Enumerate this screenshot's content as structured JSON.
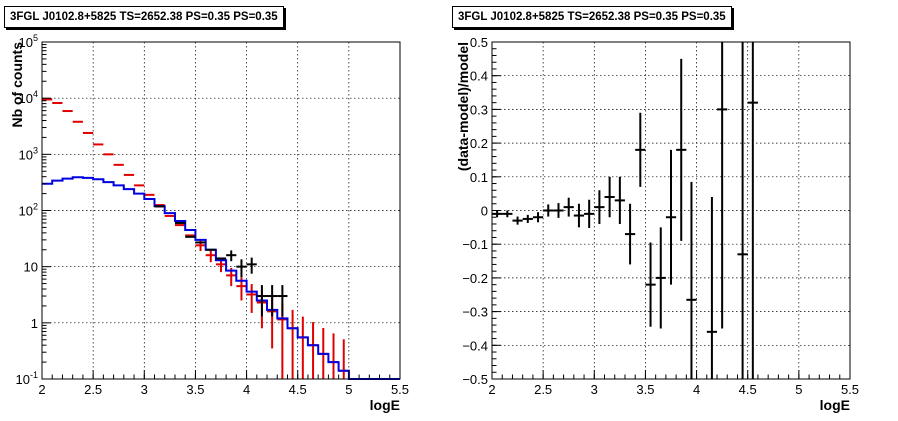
{
  "chart_data": [
    {
      "type": "scatter",
      "title": "3FGL J0102.8+5825 TS=2652.38 PS=0.35 PS=0.35",
      "xlabel": "logE",
      "ylabel": "Nb of counts",
      "xlim": [
        2,
        5.5
      ],
      "ylim": [
        0.1,
        100000
      ],
      "yscale": "log",
      "grid": true,
      "x_ticks": [
        "2",
        "2.5",
        "3",
        "3.5",
        "4",
        "4.5",
        "5",
        "5.5"
      ],
      "y_ticks": [
        "10^-1",
        "1",
        "10",
        "10^2",
        "10^3",
        "10^4",
        "10^5"
      ],
      "bin_width": 0.1,
      "series": [
        {
          "color": "#e00000",
          "style": "errorbar",
          "points": [
            {
              "x": 2.05,
              "y": 9500,
              "err_lo": 0,
              "err_hi": 0
            },
            {
              "x": 2.15,
              "y": 8200,
              "err_lo": 0,
              "err_hi": 0
            },
            {
              "x": 2.25,
              "y": 5900,
              "err_lo": 0,
              "err_hi": 0
            },
            {
              "x": 2.35,
              "y": 3800,
              "err_lo": 0,
              "err_hi": 0
            },
            {
              "x": 2.45,
              "y": 2400,
              "err_lo": 0,
              "err_hi": 0
            },
            {
              "x": 2.55,
              "y": 1500,
              "err_lo": 0,
              "err_hi": 0
            },
            {
              "x": 2.65,
              "y": 1000,
              "err_lo": 0,
              "err_hi": 0
            },
            {
              "x": 2.75,
              "y": 650,
              "err_lo": 0,
              "err_hi": 0
            },
            {
              "x": 2.85,
              "y": 430,
              "err_lo": 0,
              "err_hi": 0
            },
            {
              "x": 2.95,
              "y": 280,
              "err_lo": 0,
              "err_hi": 0
            },
            {
              "x": 3.05,
              "y": 190,
              "err_lo": 0,
              "err_hi": 0
            },
            {
              "x": 3.15,
              "y": 125,
              "err_lo": 0,
              "err_hi": 0
            },
            {
              "x": 3.25,
              "y": 80,
              "err_lo": 0,
              "err_hi": 0
            },
            {
              "x": 3.35,
              "y": 55,
              "err_lo": 0,
              "err_hi": 0
            },
            {
              "x": 3.45,
              "y": 36,
              "err_lo": 0,
              "err_hi": 0
            },
            {
              "x": 3.55,
              "y": 24,
              "err_lo": 5,
              "err_hi": 5
            },
            {
              "x": 3.65,
              "y": 16,
              "err_lo": 4,
              "err_hi": 4
            },
            {
              "x": 3.75,
              "y": 11,
              "err_lo": 3,
              "err_hi": 3
            },
            {
              "x": 3.85,
              "y": 7,
              "err_lo": 2.5,
              "err_hi": 2.5
            },
            {
              "x": 3.95,
              "y": 4.5,
              "err_lo": 2,
              "err_hi": 2
            },
            {
              "x": 4.05,
              "y": 3.2,
              "err_lo": 1.7,
              "err_hi": 1.7
            },
            {
              "x": 4.15,
              "y": 2.3,
              "err_lo": 1.5,
              "err_hi": 1.5
            },
            {
              "x": 4.25,
              "y": 1.6,
              "err_lo": 1.25,
              "err_hi": 1.25
            },
            {
              "x": 4.35,
              "y": 1.15,
              "err_lo": 1.05,
              "err_hi": 1.05
            },
            {
              "x": 4.45,
              "y": 0.8,
              "err_lo": 0.9,
              "err_hi": 0.9
            },
            {
              "x": 4.55,
              "y": 0.55,
              "err_lo": 0.74,
              "err_hi": 0.74
            },
            {
              "x": 4.65,
              "y": 0.4,
              "err_lo": 0.63,
              "err_hi": 0.63
            },
            {
              "x": 4.75,
              "y": 0.28,
              "err_lo": 0.53,
              "err_hi": 0.53
            },
            {
              "x": 4.85,
              "y": 0.2,
              "err_lo": 0.45,
              "err_hi": 0.45
            },
            {
              "x": 4.95,
              "y": 0.14,
              "err_lo": 0.37,
              "err_hi": 0.37
            }
          ]
        },
        {
          "color": "#0000e0",
          "style": "step",
          "points": [
            {
              "x": 2.05,
              "y": 300
            },
            {
              "x": 2.15,
              "y": 340
            },
            {
              "x": 2.25,
              "y": 370
            },
            {
              "x": 2.35,
              "y": 390
            },
            {
              "x": 2.45,
              "y": 380
            },
            {
              "x": 2.55,
              "y": 360
            },
            {
              "x": 2.65,
              "y": 320
            },
            {
              "x": 2.75,
              "y": 280
            },
            {
              "x": 2.85,
              "y": 240
            },
            {
              "x": 2.95,
              "y": 200
            },
            {
              "x": 3.05,
              "y": 160
            },
            {
              "x": 3.15,
              "y": 120
            },
            {
              "x": 3.25,
              "y": 90
            },
            {
              "x": 3.35,
              "y": 65
            },
            {
              "x": 3.45,
              "y": 45
            },
            {
              "x": 3.55,
              "y": 30
            },
            {
              "x": 3.65,
              "y": 20
            },
            {
              "x": 3.75,
              "y": 13
            },
            {
              "x": 3.85,
              "y": 8.5
            },
            {
              "x": 3.95,
              "y": 5.6
            },
            {
              "x": 4.05,
              "y": 3.6
            },
            {
              "x": 4.15,
              "y": 2.5
            },
            {
              "x": 4.25,
              "y": 1.7
            },
            {
              "x": 4.35,
              "y": 1.2
            },
            {
              "x": 4.45,
              "y": 0.8
            },
            {
              "x": 4.55,
              "y": 0.55
            },
            {
              "x": 4.65,
              "y": 0.4
            },
            {
              "x": 4.75,
              "y": 0.28
            },
            {
              "x": 4.85,
              "y": 0.2
            },
            {
              "x": 4.95,
              "y": 0.14
            },
            {
              "x": 5.05,
              "y": 0.1
            },
            {
              "x": 5.15,
              "y": 0.1
            },
            {
              "x": 5.25,
              "y": 0.1
            },
            {
              "x": 5.35,
              "y": 0.1
            },
            {
              "x": 5.45,
              "y": 0.1
            }
          ]
        },
        {
          "color": "#000000",
          "style": "errorbar",
          "points": [
            {
              "x": 3.15,
              "y": 118,
              "err_lo": 0,
              "err_hi": 0
            },
            {
              "x": 3.35,
              "y": 60,
              "err_lo": 0,
              "err_hi": 0
            },
            {
              "x": 3.45,
              "y": 34,
              "err_lo": 0,
              "err_hi": 0
            },
            {
              "x": 3.55,
              "y": 27,
              "err_lo": 0,
              "err_hi": 0
            },
            {
              "x": 3.65,
              "y": 20,
              "err_lo": 0,
              "err_hi": 0
            },
            {
              "x": 3.75,
              "y": 14,
              "err_lo": 0,
              "err_hi": 0
            },
            {
              "x": 3.85,
              "y": 16,
              "err_lo": 3.5,
              "err_hi": 3.5
            },
            {
              "x": 3.95,
              "y": 10,
              "err_lo": 3.5,
              "err_hi": 3.5
            },
            {
              "x": 4.05,
              "y": 11,
              "err_lo": 3.5,
              "err_hi": 3.5
            },
            {
              "x": 4.15,
              "y": 3,
              "err_lo": 1.7,
              "err_hi": 1.7
            },
            {
              "x": 4.25,
              "y": 3,
              "err_lo": 1.7,
              "err_hi": 1.7
            },
            {
              "x": 4.35,
              "y": 3,
              "err_lo": 1.7,
              "err_hi": 1.7
            }
          ]
        }
      ]
    },
    {
      "type": "scatter",
      "title": "3FGL J0102.8+5825 TS=2652.38 PS=0.35 PS=0.35",
      "xlabel": "logE",
      "ylabel": "(data-model)/model",
      "xlim": [
        2,
        5.5
      ],
      "ylim": [
        -0.5,
        0.5
      ],
      "grid": true,
      "x_ticks": [
        "2",
        "2.5",
        "3",
        "3.5",
        "4",
        "4.5",
        "5",
        "5.5"
      ],
      "y_ticks": [
        "−0.5",
        "−0.4",
        "−0.3",
        "−0.2",
        "−0.1",
        "0",
        "0.1",
        "0.2",
        "0.3",
        "0.4",
        "0.5"
      ],
      "bin_width": 0.1,
      "series": [
        {
          "color": "#000000",
          "style": "errorbar",
          "points": [
            {
              "x": 2.05,
              "y": -0.01,
              "err_lo": 0.01,
              "err_hi": 0.01
            },
            {
              "x": 2.15,
              "y": -0.01,
              "err_lo": 0.01,
              "err_hi": 0.01
            },
            {
              "x": 2.25,
              "y": -0.03,
              "err_lo": 0.012,
              "err_hi": 0.012
            },
            {
              "x": 2.35,
              "y": -0.025,
              "err_lo": 0.012,
              "err_hi": 0.012
            },
            {
              "x": 2.45,
              "y": -0.02,
              "err_lo": 0.015,
              "err_hi": 0.015
            },
            {
              "x": 2.55,
              "y": 0.0,
              "err_lo": 0.018,
              "err_hi": 0.018
            },
            {
              "x": 2.65,
              "y": 0.0,
              "err_lo": 0.022,
              "err_hi": 0.022
            },
            {
              "x": 2.75,
              "y": 0.01,
              "err_lo": 0.028,
              "err_hi": 0.028
            },
            {
              "x": 2.85,
              "y": -0.015,
              "err_lo": 0.035,
              "err_hi": 0.035
            },
            {
              "x": 2.95,
              "y": -0.01,
              "err_lo": 0.042,
              "err_hi": 0.042
            },
            {
              "x": 3.05,
              "y": 0.01,
              "err_lo": 0.05,
              "err_hi": 0.05
            },
            {
              "x": 3.15,
              "y": 0.04,
              "err_lo": 0.06,
              "err_hi": 0.06
            },
            {
              "x": 3.25,
              "y": 0.03,
              "err_lo": 0.07,
              "err_hi": 0.07
            },
            {
              "x": 3.35,
              "y": -0.07,
              "err_lo": 0.09,
              "err_hi": 0.09
            },
            {
              "x": 3.45,
              "y": 0.18,
              "err_lo": 0.11,
              "err_hi": 0.11
            },
            {
              "x": 3.55,
              "y": -0.22,
              "err_lo": 0.125,
              "err_hi": 0.125
            },
            {
              "x": 3.65,
              "y": -0.2,
              "err_lo": 0.15,
              "err_hi": 0.15
            },
            {
              "x": 3.75,
              "y": -0.02,
              "err_lo": 0.2,
              "err_hi": 0.2
            },
            {
              "x": 3.85,
              "y": 0.18,
              "err_lo": 0.27,
              "err_hi": 0.27
            },
            {
              "x": 3.95,
              "y": -0.265,
              "err_lo": 0.35,
              "err_hi": 0.35
            },
            {
              "x": 4.15,
              "y": -0.36,
              "err_lo": 0.4,
              "err_hi": 0.4
            },
            {
              "x": 4.25,
              "y": 0.3,
              "err_lo": 0.65,
              "err_hi": 0.65
            },
            {
              "x": 4.45,
              "y": -0.13,
              "err_lo": 0.8,
              "err_hi": 0.8
            },
            {
              "x": 4.55,
              "y": 0.32,
              "err_lo": 0.9,
              "err_hi": 0.9
            }
          ]
        }
      ]
    }
  ]
}
